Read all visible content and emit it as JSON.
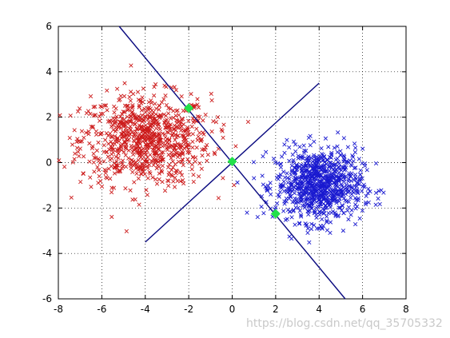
{
  "chart_data": {
    "type": "scatter",
    "xlim": [
      -8,
      8
    ],
    "ylim": [
      -6,
      6
    ],
    "x_ticks": [
      -8,
      -6,
      -4,
      -2,
      0,
      2,
      4,
      6,
      8
    ],
    "y_ticks": [
      -6,
      -4,
      -2,
      0,
      2,
      4,
      6
    ],
    "x_tick_labels": [
      "-8",
      "-6",
      "-4",
      "-2",
      "0",
      "2",
      "4",
      "6",
      "8"
    ],
    "y_tick_labels": [
      "-6",
      "-4",
      "-2",
      "0",
      "2",
      "4",
      "6"
    ],
    "grid": true,
    "grid_style": "dotted",
    "colors": {
      "class1": "#cc1a1a",
      "class2": "#1a1ad0",
      "lines": "#0a0a80",
      "markers": "#22e04a"
    },
    "clusters": [
      {
        "marker": "x",
        "color": "#cc1a1a",
        "center": [
          -4,
          1
        ],
        "std": [
          1.5,
          1.0
        ],
        "count": 850
      },
      {
        "marker": "x",
        "color": "#1a1ad0",
        "center": [
          4,
          -1
        ],
        "std": [
          1.0,
          0.8
        ],
        "count": 850
      }
    ],
    "lines": [
      {
        "from": [
          -5.2,
          6
        ],
        "to": [
          5.2,
          -6
        ],
        "color": "#0a0a80"
      },
      {
        "from": [
          -4,
          -3.5
        ],
        "to": [
          4,
          3.5
        ],
        "color": "#0a0a80"
      }
    ],
    "highlighted_points": [
      {
        "x": -2,
        "y": 2.4
      },
      {
        "x": 0,
        "y": 0.05
      },
      {
        "x": 2,
        "y": -2.25
      }
    ]
  },
  "watermark": "https://blog.csdn.net/qq_35705332"
}
